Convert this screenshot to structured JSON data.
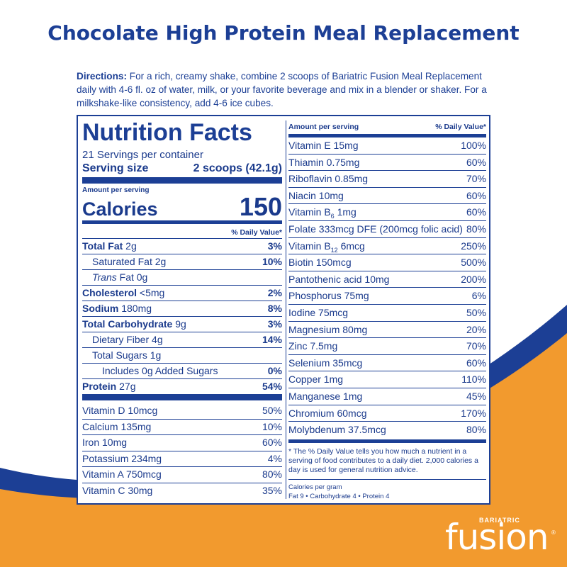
{
  "title": "Chocolate High Protein Meal Replacement",
  "directions": {
    "label": "Directions:",
    "text": " For a rich, creamy shake, combine 2 scoops of Bariatric Fusion Meal Replacement daily with 4-6 fl. oz of water, milk, or your favorite beverage and mix in a blender or shaker. For a milkshake-like consistency, add 4-6 ice cubes."
  },
  "nutrition": {
    "heading": "Nutrition Facts",
    "servings": "21 Servings per container",
    "serving_size_label": "Serving size",
    "serving_size_value": "2 scoops (42.1g)",
    "amount_per_serving": "Amount per serving",
    "calories_label": "Calories",
    "calories_value": "150",
    "dv_header": "% Daily Value*",
    "rows": [
      {
        "name": "Total Fat",
        "amount": " 2g",
        "pct": "3%"
      },
      {
        "name": "Saturated Fat",
        "amount": " 2g",
        "pct": "10%"
      },
      {
        "name": "Trans",
        "amount": " Fat 0g",
        "pct": ""
      },
      {
        "name": "Cholesterol",
        "amount": " <5mg",
        "pct": "2%"
      },
      {
        "name": "Sodium",
        "amount": " 180mg",
        "pct": "8%"
      },
      {
        "name": "Total Carbohydrate",
        "amount": " 9g",
        "pct": "3%"
      },
      {
        "name": "Dietary Fiber",
        "amount": " 4g",
        "pct": "14%"
      },
      {
        "name": "Total Sugars",
        "amount": " 1g",
        "pct": ""
      },
      {
        "name": "Includes 0g Added Sugars",
        "amount": "",
        "pct": "0%"
      },
      {
        "name": "Protein",
        "amount": " 27g",
        "pct": "54%"
      }
    ],
    "vitamins_left": [
      {
        "name": "Vitamin D  10mcg",
        "pct": "50%"
      },
      {
        "name": "Calcium  135mg",
        "pct": "10%"
      },
      {
        "name": "Iron  10mg",
        "pct": "60%"
      },
      {
        "name": "Potassium  234mg",
        "pct": "4%"
      },
      {
        "name": "Vitamin A  750mcg",
        "pct": "80%"
      },
      {
        "name": "Vitamin C  30mg",
        "pct": "35%"
      }
    ],
    "right_header_amount": "Amount per serving",
    "right_header_dv": "% Daily Value*",
    "right_rows": [
      {
        "name": "Vitamin E  15mg",
        "pct": "100%"
      },
      {
        "name": "Thiamin  0.75mg",
        "pct": "60%"
      },
      {
        "name": "Riboflavin  0.85mg",
        "pct": "70%"
      },
      {
        "name": "Niacin  10mg",
        "pct": "60%"
      },
      {
        "name_pre": "Vitamin B",
        "sub": "6",
        "name_post": "  1mg",
        "pct": "60%"
      },
      {
        "name": "Folate  333mcg DFE (200mcg folic acid)",
        "pct": "80%"
      },
      {
        "name_pre": "Vitamin B",
        "sub": "12",
        "name_post": "  6mcg",
        "pct": "250%"
      },
      {
        "name": "Biotin  150mcg",
        "pct": "500%"
      },
      {
        "name": "Pantothenic acid  10mg",
        "pct": "200%"
      },
      {
        "name": "Phosphorus  75mg",
        "pct": "6%"
      },
      {
        "name": "Iodine  75mcg",
        "pct": "50%"
      },
      {
        "name": "Magnesium  80mg",
        "pct": "20%"
      },
      {
        "name": "Zinc  7.5mg",
        "pct": "70%"
      },
      {
        "name": "Selenium  35mcg",
        "pct": "60%"
      },
      {
        "name": "Copper  1mg",
        "pct": "110%"
      },
      {
        "name": "Manganese  1mg",
        "pct": "45%"
      },
      {
        "name": "Chromium  60mcg",
        "pct": "170%"
      },
      {
        "name": "Molybdenum  37.5mcg",
        "pct": "80%"
      }
    ],
    "footnote": "* The % Daily Value tells you how much a nutrient in a serving of food contributes to a daily diet. 2,000 calories a day is used for general nutrition advice.",
    "calories_per_gram_label": "Calories per gram",
    "calories_per_gram": "Fat 9  •  Carbohydrate 4  •  Protein 4"
  },
  "logo": {
    "small": "BARIATRIC",
    "main": "fusion",
    "reg": "®"
  },
  "colors": {
    "primary_blue": "#1c3f95",
    "orange": "#f29a2e"
  }
}
